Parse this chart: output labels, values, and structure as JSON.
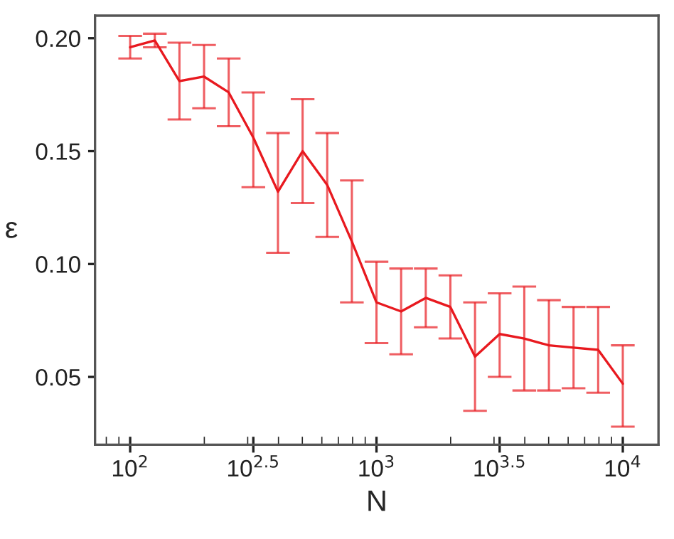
{
  "chart_data": {
    "type": "line",
    "xlabel": "N",
    "ylabel": "ε",
    "log": "x",
    "x": [
      100,
      125.9,
      158.5,
      199.5,
      251.2,
      316.2,
      398.1,
      501.2,
      631,
      794.3,
      1000,
      1259,
      1585,
      1995,
      2512,
      3162,
      3981,
      5012,
      6310,
      7943,
      10000
    ],
    "series": [
      {
        "color": "#e8191f",
        "values": [
          0.196,
          0.199,
          0.181,
          0.183,
          0.176,
          0.156,
          0.132,
          0.15,
          0.135,
          0.11,
          0.083,
          0.079,
          0.085,
          0.081,
          0.059,
          0.069,
          0.067,
          0.064,
          0.063,
          0.062,
          0.047
        ],
        "errors": [
          [
            0.191,
            0.201
          ],
          [
            0.196,
            0.202
          ],
          [
            0.164,
            0.198
          ],
          [
            0.169,
            0.197
          ],
          [
            0.161,
            0.191
          ],
          [
            0.134,
            0.176
          ],
          [
            0.105,
            0.158
          ],
          [
            0.127,
            0.173
          ],
          [
            0.112,
            0.158
          ],
          [
            0.083,
            0.137
          ],
          [
            0.065,
            0.101
          ],
          [
            0.06,
            0.098
          ],
          [
            0.072,
            0.098
          ],
          [
            0.067,
            0.095
          ],
          [
            0.035,
            0.083
          ],
          [
            0.05,
            0.087
          ],
          [
            0.044,
            0.09
          ],
          [
            0.044,
            0.084
          ],
          [
            0.045,
            0.081
          ],
          [
            0.043,
            0.081
          ],
          [
            0.028,
            0.064
          ]
        ]
      }
    ],
    "xlim": [
      72,
      13960
    ],
    "ylim": [
      0.02,
      0.21
    ],
    "xticks": [
      {
        "value": 100,
        "label": "10$^{2}$"
      },
      {
        "value": 316.2,
        "label": "10$^{2.5}$"
      },
      {
        "value": 1000,
        "label": "10$^{3}$"
      },
      {
        "value": 3162,
        "label": "10$^{3.5}$"
      },
      {
        "value": 10000,
        "label": "10$^{4}$"
      }
    ],
    "yticks": [
      {
        "value": 0.05,
        "label": "0.05"
      },
      {
        "value": 0.1,
        "label": "0.10"
      },
      {
        "value": 0.15,
        "label": "0.15"
      },
      {
        "value": 0.2,
        "label": "0.20"
      }
    ],
    "grid": false,
    "legend": false,
    "marker": "none",
    "line_style": "solid"
  }
}
